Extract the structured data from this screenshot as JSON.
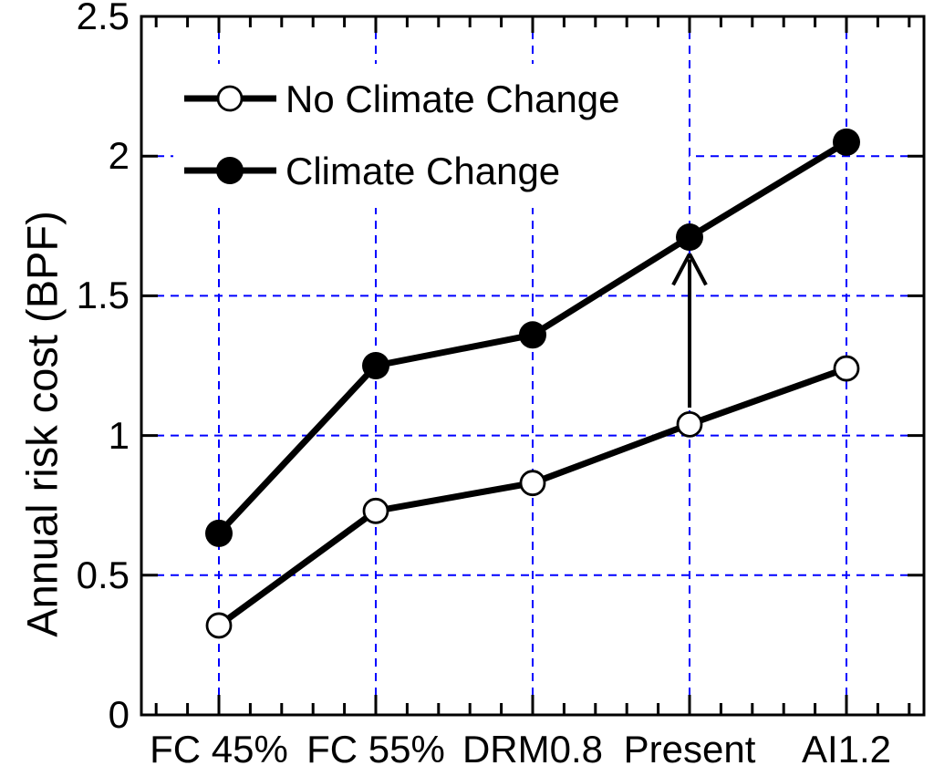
{
  "chart_data": {
    "type": "line",
    "title": "",
    "categories": [
      "FC 45%",
      "FC 55%",
      "DRM0.8",
      "Present",
      "AI1.2"
    ],
    "series": [
      {
        "name": "No Climate Change",
        "marker": "open-circle",
        "values": [
          0.32,
          0.73,
          0.83,
          1.04,
          1.24
        ]
      },
      {
        "name": "Climate Change",
        "marker": "filled-circle",
        "values": [
          0.65,
          1.25,
          1.36,
          1.71,
          2.05
        ]
      }
    ],
    "xlabel": "",
    "ylabel": "Annual risk cost (BPF)",
    "ylim": [
      0,
      2.5
    ],
    "ytick_values": [
      0,
      0.5,
      1,
      1.5,
      2,
      2.5
    ],
    "ytick_labels_top_to_bottom": [
      "2.5",
      "2",
      "1.5",
      "1",
      "0.5",
      "0"
    ],
    "y_gridline_values": [
      0.5,
      1,
      1.5,
      2
    ],
    "grid_style": "dashed",
    "legend_position": "top-left-inside",
    "annotation_arrow": {
      "category": "Present",
      "from_value": 1.1,
      "to_value": 1.65,
      "meaning": "increase from No Climate Change to Climate Change at Present"
    }
  },
  "colors": {
    "series_line": "#000000",
    "marker_fill": "#000000",
    "open_marker_fill": "#ffffff",
    "grid": "#0000ff",
    "axis": "#000000",
    "background": "#ffffff",
    "text": "#000000"
  }
}
